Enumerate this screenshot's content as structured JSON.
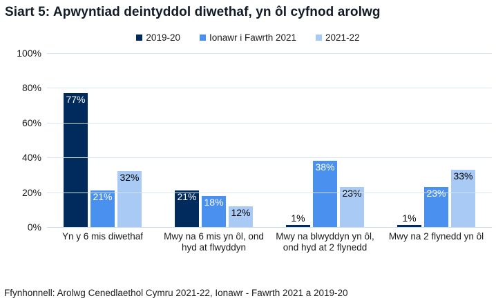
{
  "title": "Siart 5: Apwyntiad deintyddol diwethaf, yn ôl cyfnod arolwg",
  "source": "Ffynhonnell: Arolwg Cenedlaethol Cymru 2021-22, Ionawr - Fawrth 2021 a 2019-20",
  "colors": {
    "title_text": "#121a26",
    "gridline": "#d9e5f4",
    "axis_baseline": "#c9daee",
    "series_dark_navy": "#002b5c",
    "series_medium_blue": "#4a90ee",
    "series_light_blue": "#a9caf5"
  },
  "chart_data": {
    "type": "bar",
    "title": "Siart 5: Apwyntiad deintyddol diwethaf, yn ôl cyfnod arolwg",
    "categories": [
      "Yn y 6 mis diwethaf",
      "Mwy na 6 mis yn ôl, ond hyd at flwyddyn",
      "Mwy na blwyddyn yn ôl, ond hyd at 2 flynedd",
      "Mwy na 2 flynedd yn ôl"
    ],
    "series": [
      {
        "name": "2019-20",
        "values": [
          77,
          21,
          1,
          1
        ],
        "color": "#002b5c",
        "label_color": "#ffffff"
      },
      {
        "name": "Ionawr i Fawrth 2021",
        "values": [
          21,
          18,
          38,
          23
        ],
        "color": "#4a90ee",
        "label_color": "#ffffff"
      },
      {
        "name": "2021-22",
        "values": [
          32,
          12,
          23,
          33
        ],
        "color": "#a9caf5",
        "label_color": "#000000"
      }
    ],
    "data_labels": [
      "77%",
      "21%",
      "32%",
      "21%",
      "18%",
      "12%",
      "1%",
      "38%",
      "23%",
      "1%",
      "23%",
      "33%"
    ],
    "value_suffix": "%",
    "xlabel": "",
    "ylabel": "",
    "ylim": [
      0,
      100
    ],
    "ytick_labels": [
      "0%",
      "20%",
      "40%",
      "60%",
      "80%",
      "100%"
    ],
    "grid": true,
    "legend_position": "top"
  }
}
